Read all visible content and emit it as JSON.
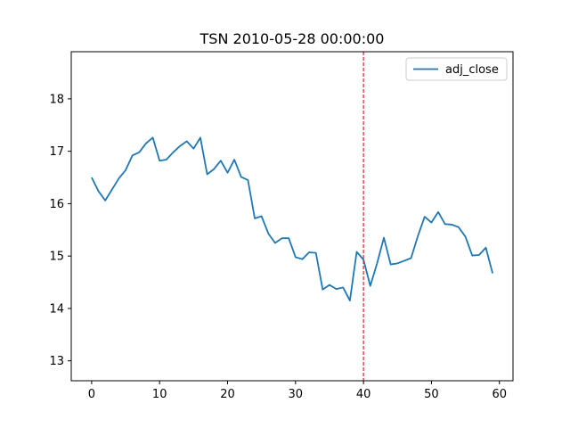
{
  "chart_data": {
    "type": "line",
    "title": "TSN 2010-05-28 00:00:00",
    "xlabel": "",
    "ylabel": "",
    "xlim": [
      -3,
      62
    ],
    "ylim": [
      12.62,
      18.9
    ],
    "xticks": [
      0,
      10,
      20,
      30,
      40,
      50,
      60
    ],
    "yticks": [
      13,
      14,
      15,
      16,
      17,
      18
    ],
    "grid": false,
    "legend_position": "top-right",
    "series": [
      {
        "name": "adj_close",
        "color": "#1f77b4",
        "x": [
          0,
          1,
          2,
          3,
          4,
          5,
          6,
          7,
          8,
          9,
          10,
          11,
          12,
          13,
          14,
          15,
          16,
          17,
          18,
          19,
          20,
          21,
          22,
          23,
          24,
          25,
          26,
          27,
          28,
          29,
          30,
          31,
          32,
          33,
          34,
          35,
          36,
          37,
          38,
          39,
          40,
          41,
          42,
          43,
          44,
          45,
          46,
          47,
          48,
          49,
          50,
          51,
          52,
          53,
          54,
          55,
          56,
          57,
          58,
          59
        ],
        "values": [
          16.5,
          16.24,
          16.06,
          16.27,
          16.48,
          16.64,
          16.92,
          16.98,
          17.15,
          17.26,
          16.82,
          16.84,
          16.98,
          17.1,
          17.19,
          17.05,
          17.26,
          16.56,
          16.66,
          16.82,
          16.59,
          16.84,
          16.51,
          16.45,
          15.72,
          15.76,
          15.43,
          15.25,
          15.34,
          15.34,
          14.98,
          14.94,
          15.07,
          15.06,
          14.36,
          14.45,
          14.37,
          14.4,
          14.15,
          15.08,
          14.93,
          14.43,
          14.86,
          15.35,
          14.84,
          14.86,
          14.91,
          14.96,
          15.38,
          15.75,
          15.64,
          15.84,
          15.61,
          15.6,
          15.55,
          15.37,
          15.01,
          15.02,
          15.16,
          14.67
        ]
      }
    ],
    "annotations": [
      {
        "type": "vline",
        "x": 40,
        "color": "#d62728",
        "style": "dashed"
      }
    ]
  }
}
